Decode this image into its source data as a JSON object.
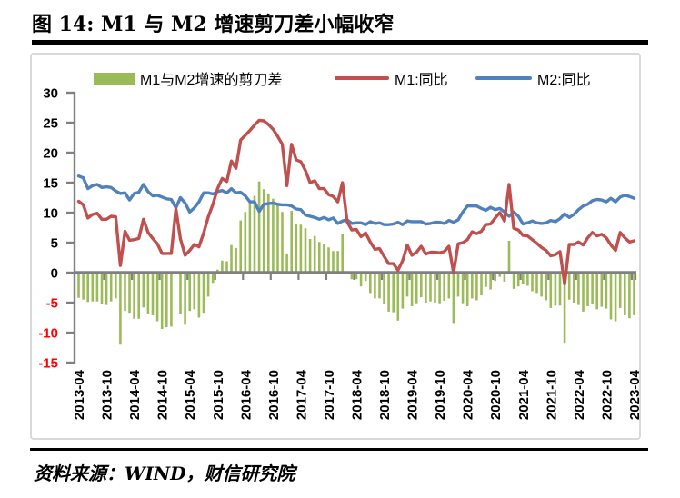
{
  "title": "图 14:  M1 与 M2 增速剪刀差小幅收窄",
  "source": "资料来源：WIND，财信研究院",
  "chart_data": {
    "type": "combo",
    "x_start": "2013-04",
    "x_end": "2023-04",
    "x_frequency": "monthly",
    "x_tick_labels": [
      "2013-04",
      "2013-10",
      "2014-04",
      "2014-10",
      "2015-04",
      "2015-10",
      "2016-04",
      "2016-10",
      "2017-04",
      "2017-10",
      "2018-04",
      "2018-10",
      "2019-04",
      "2019-10",
      "2020-04",
      "2020-10",
      "2021-04",
      "2021-10",
      "2022-04",
      "2022-10",
      "2023-04"
    ],
    "ylim": [
      -15,
      30
    ],
    "y_ticks": [
      30,
      25,
      20,
      15,
      10,
      5,
      0,
      -5,
      -10,
      -15
    ],
    "y_tick_negative_color": "#FF0000",
    "axis_color": "#808080",
    "grid": "off",
    "legend_position": "top",
    "series": [
      {
        "name": "M1与M2增速的剪刀差",
        "type": "bar",
        "color": "#9BBB59",
        "values": [
          -4.2,
          -4.5,
          -4.9,
          -4.8,
          -4.8,
          -5.3,
          -5.4,
          -4.8,
          -4.3,
          -12.0,
          -6.4,
          -6.7,
          -7.7,
          -7.7,
          -5.8,
          -6.8,
          -7.1,
          -8.1,
          -9.4,
          -9.1,
          -9.0,
          -0.2,
          -6.9,
          -8.7,
          -6.4,
          -6.1,
          -7.5,
          -6.7,
          -4.0,
          -1.7,
          0.5,
          2.0,
          1.9,
          4.6,
          4.1,
          8.7,
          10.1,
          11.9,
          12.8,
          15.2,
          13.9,
          13.2,
          12.3,
          11.3,
          10.1,
          3.2,
          10.3,
          8.2,
          8.0,
          7.4,
          5.6,
          6.1,
          5.1,
          4.8,
          4.2,
          3.6,
          3.6,
          6.4,
          -0.3,
          -1.1,
          -1.1,
          -2.3,
          -1.4,
          -3.4,
          -4.3,
          -4.3,
          -5.3,
          -6.5,
          -6.6,
          -8.0,
          -6.0,
          -4.0,
          -5.6,
          -5.1,
          -4.1,
          -5.0,
          -4.8,
          -5.0,
          -5.1,
          -4.7,
          -4.3,
          -8.4,
          -4.0,
          -5.1,
          -5.6,
          -4.3,
          -4.6,
          -3.8,
          -2.4,
          -2.8,
          -1.4,
          -0.7,
          -1.5,
          5.3,
          -2.7,
          -2.3,
          -1.9,
          -2.2,
          -3.1,
          -3.4,
          -4.0,
          -4.6,
          -5.9,
          -5.5,
          -5.5,
          -11.7,
          -4.5,
          -5.0,
          -5.4,
          -6.5,
          -5.6,
          -5.3,
          -6.1,
          -5.7,
          -6.0,
          -7.8,
          -8.1,
          -5.9,
          -7.1,
          -7.6,
          -7.1
        ]
      },
      {
        "name": "M1:同比",
        "type": "line",
        "color": "#C0504D",
        "values": [
          11.9,
          11.3,
          9.1,
          9.7,
          9.9,
          8.9,
          8.9,
          9.4,
          9.3,
          1.2,
          6.9,
          5.4,
          5.5,
          5.7,
          8.9,
          6.7,
          5.7,
          4.8,
          3.2,
          3.2,
          3.2,
          10.6,
          5.6,
          2.9,
          3.7,
          4.7,
          4.3,
          6.6,
          9.3,
          11.4,
          14.0,
          15.7,
          15.2,
          18.6,
          17.4,
          22.1,
          22.9,
          23.7,
          24.6,
          25.4,
          25.3,
          24.7,
          23.9,
          22.7,
          21.4,
          14.5,
          21.4,
          18.8,
          18.5,
          17.0,
          15.0,
          15.3,
          14.0,
          14.0,
          13.0,
          12.7,
          11.8,
          15.0,
          8.5,
          7.1,
          7.2,
          6.0,
          6.6,
          5.1,
          3.9,
          4.0,
          2.7,
          1.5,
          1.5,
          0.4,
          2.0,
          4.6,
          2.9,
          3.4,
          4.4,
          3.1,
          3.4,
          3.4,
          3.3,
          3.5,
          4.4,
          0.0,
          4.8,
          5.0,
          5.5,
          6.8,
          6.5,
          6.9,
          8.0,
          8.1,
          9.1,
          10.0,
          8.6,
          14.7,
          7.4,
          7.1,
          6.2,
          6.1,
          5.5,
          4.9,
          4.2,
          3.7,
          2.8,
          3.0,
          3.5,
          -1.9,
          4.7,
          4.7,
          5.1,
          4.6,
          5.8,
          6.7,
          6.1,
          6.4,
          5.8,
          4.6,
          3.7,
          6.7,
          5.8,
          5.1,
          5.3
        ]
      },
      {
        "name": "M2:同比",
        "type": "line",
        "color": "#4F81BD",
        "values": [
          16.1,
          15.8,
          14.0,
          14.5,
          14.7,
          14.2,
          14.3,
          14.2,
          13.6,
          13.2,
          13.3,
          12.1,
          13.2,
          13.4,
          14.7,
          13.5,
          12.8,
          12.9,
          12.6,
          12.3,
          12.2,
          10.8,
          12.5,
          11.6,
          10.1,
          10.8,
          11.8,
          13.3,
          13.3,
          13.1,
          13.5,
          13.7,
          13.3,
          14.0,
          13.3,
          13.4,
          12.8,
          11.8,
          11.8,
          10.2,
          11.4,
          11.5,
          11.6,
          11.4,
          11.3,
          11.3,
          11.1,
          10.6,
          10.5,
          9.6,
          9.4,
          9.2,
          8.9,
          9.2,
          8.8,
          9.1,
          8.2,
          8.6,
          8.8,
          8.2,
          8.3,
          8.3,
          8.0,
          8.5,
          8.2,
          8.3,
          8.0,
          8.0,
          8.1,
          8.4,
          8.0,
          8.6,
          8.5,
          8.5,
          8.5,
          8.1,
          8.2,
          8.4,
          8.4,
          8.2,
          8.7,
          8.4,
          8.8,
          10.1,
          11.1,
          11.1,
          11.1,
          10.7,
          10.4,
          10.9,
          10.5,
          10.7,
          10.1,
          9.4,
          10.1,
          9.4,
          8.1,
          8.3,
          8.6,
          8.3,
          8.2,
          8.3,
          8.7,
          8.5,
          9.0,
          9.8,
          9.2,
          9.7,
          10.5,
          11.1,
          11.4,
          12.0,
          12.2,
          12.1,
          11.8,
          12.4,
          11.8,
          12.6,
          12.9,
          12.7,
          12.4
        ]
      }
    ]
  }
}
